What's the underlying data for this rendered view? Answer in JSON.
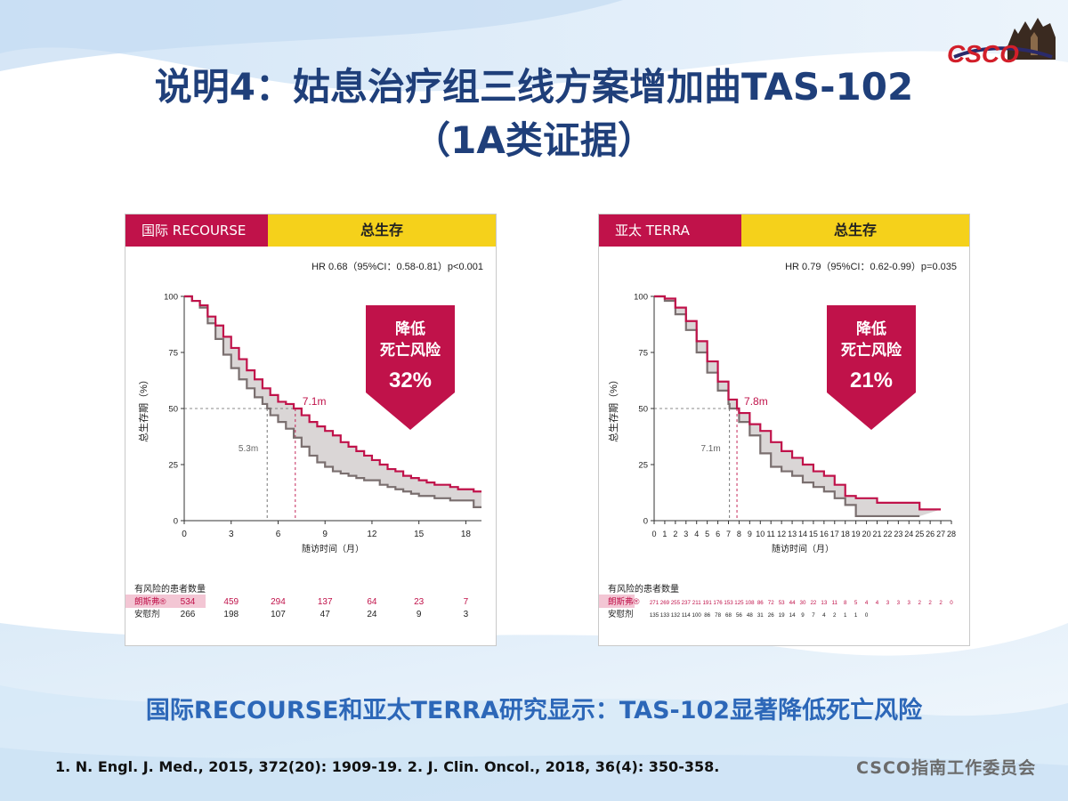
{
  "slide": {
    "title_line1": "说明4：姑息治疗组三线方案增加曲TAS-102",
    "title_line2": "（1A类证据）",
    "logo_text": "CSCO",
    "conclusion": "国际RECOURSE和亚太TERRA研究显示：TAS-102显著降低死亡风险",
    "references": "1. N. Engl. J. Med., 2015, 372(20): 1909-19.    2. J. Clin. Oncol., 2018, 36(4): 350-358.",
    "committee": "CSCO指南工作委员会",
    "colors": {
      "treatment": "#c0124a",
      "placebo": "#7a6f6f",
      "fill": "#d6d2d2",
      "tag": "#c0124a",
      "header": "#f5d11b",
      "title": "#1f3f7a"
    }
  },
  "chart_data": [
    {
      "type": "line",
      "tag": "国际 RECOURSE",
      "title": "总生存",
      "hr_text": "HR 0.68（95%CI：0.58-0.81）p<0.001",
      "ylabel": "总生存期（%）",
      "xlabel": "随访时间（月）",
      "xlim": [
        0,
        19
      ],
      "ylim": [
        0,
        100
      ],
      "x_ticks": [
        0,
        3,
        6,
        9,
        12,
        15,
        18
      ],
      "y_ticks": [
        0,
        25,
        50,
        75,
        100
      ],
      "callout": {
        "line1": "降低",
        "line2": "死亡风险",
        "value": "32%"
      },
      "median_treatment": {
        "x": 7.1,
        "label": "7.1m"
      },
      "median_placebo": {
        "x": 5.3,
        "label": "5.3m"
      },
      "series": [
        {
          "name": "朗斯弗®",
          "x": [
            0,
            0.5,
            1,
            1.5,
            2,
            2.5,
            3,
            3.5,
            4,
            4.5,
            5,
            5.5,
            6,
            6.5,
            7,
            7.1,
            7.5,
            8,
            8.5,
            9,
            9.5,
            10,
            10.5,
            11,
            11.5,
            12,
            12.5,
            13,
            13.5,
            14,
            14.5,
            15,
            15.5,
            16,
            16.5,
            17,
            17.5,
            18,
            18.5,
            19
          ],
          "y": [
            100,
            98,
            96,
            91,
            87,
            82,
            77,
            72,
            67,
            63,
            59,
            56,
            53,
            52,
            50,
            50,
            47,
            44,
            42,
            40,
            38,
            35,
            33,
            31,
            29,
            27,
            25,
            23,
            22,
            20,
            19,
            18,
            17,
            16,
            16,
            15,
            14,
            14,
            13,
            13
          ]
        },
        {
          "name": "安慰剂",
          "x": [
            0,
            0.5,
            1,
            1.5,
            2,
            2.5,
            3,
            3.5,
            4,
            4.5,
            5,
            5.3,
            5.5,
            6,
            6.5,
            7,
            7.5,
            8,
            8.5,
            9,
            9.5,
            10,
            10.5,
            11,
            11.5,
            12,
            12.5,
            13,
            13.5,
            14,
            14.5,
            15,
            15.5,
            16,
            16.5,
            17,
            17.5,
            18,
            18.5,
            19
          ],
          "y": [
            100,
            98,
            95,
            88,
            81,
            74,
            68,
            63,
            59,
            55,
            52,
            50,
            47,
            44,
            41,
            37,
            33,
            29,
            26,
            24,
            22,
            21,
            20,
            19,
            18,
            18,
            16,
            15,
            14,
            13,
            12,
            11,
            11,
            10,
            10,
            9,
            9,
            9,
            6,
            6
          ]
        }
      ],
      "risk_table": {
        "title": "有风险的患者数量",
        "rows": [
          {
            "label": "朗斯弗®",
            "values": [
              "534",
              "459",
              "294",
              "137",
              "64",
              "23",
              "7"
            ]
          },
          {
            "label": "安慰剂",
            "values": [
              "266",
              "198",
              "107",
              "47",
              "24",
              "9",
              "3"
            ]
          }
        ]
      }
    },
    {
      "type": "line",
      "tag": "亚太 TERRA",
      "title": "总生存",
      "hr_text": "HR 0.79（95%CI：0.62-0.99）p=0.035",
      "ylabel": "总生存期（%）",
      "xlabel": "随访时间（月）",
      "xlim": [
        0,
        28
      ],
      "ylim": [
        0,
        100
      ],
      "x_ticks": [
        0,
        1,
        2,
        3,
        4,
        5,
        6,
        7,
        8,
        9,
        10,
        11,
        12,
        13,
        14,
        15,
        16,
        17,
        18,
        19,
        20,
        21,
        22,
        23,
        24,
        25,
        26,
        27,
        28
      ],
      "y_ticks": [
        0,
        25,
        50,
        75,
        100
      ],
      "callout": {
        "line1": "降低",
        "line2": "死亡风险",
        "value": "21%"
      },
      "median_treatment": {
        "x": 7.8,
        "label": "7.8m"
      },
      "median_placebo": {
        "x": 7.1,
        "label": "7.1m"
      },
      "series": [
        {
          "name": "朗斯弗®",
          "x": [
            0,
            1,
            2,
            3,
            4,
            5,
            6,
            7,
            7.8,
            8,
            9,
            10,
            11,
            12,
            13,
            14,
            15,
            16,
            17,
            18,
            19,
            20,
            21,
            22,
            23,
            24,
            25,
            26,
            27
          ],
          "y": [
            100,
            99,
            95,
            89,
            80,
            71,
            62,
            54,
            50,
            48,
            43,
            40,
            35,
            31,
            28,
            25,
            22,
            20,
            16,
            11,
            10,
            10,
            8,
            8,
            8,
            8,
            5,
            5,
            5
          ]
        },
        {
          "name": "安慰剂",
          "x": [
            0,
            1,
            2,
            3,
            4,
            5,
            6,
            7,
            7.1,
            8,
            9,
            10,
            11,
            12,
            13,
            14,
            15,
            16,
            17,
            18,
            19,
            20,
            21,
            22,
            23,
            24,
            25
          ],
          "y": [
            100,
            98,
            92,
            85,
            75,
            66,
            58,
            52,
            50,
            44,
            38,
            30,
            24,
            22,
            20,
            17,
            15,
            13,
            10,
            7,
            2,
            2,
            2,
            2,
            2,
            2,
            2
          ]
        }
      ],
      "risk_table": {
        "title": "有风险的患者数量",
        "rows": [
          {
            "label": "朗斯弗®",
            "values": [
              "271",
              "269",
              "255",
              "237",
              "211",
              "191",
              "176",
              "153",
              "125",
              "108",
              "86",
              "72",
              "53",
              "44",
              "30",
              "22",
              "13",
              "11",
              "8",
              "5",
              "4",
              "4",
              "3",
              "3",
              "3",
              "2",
              "2",
              "2",
              "0"
            ]
          },
          {
            "label": "安慰剂",
            "values": [
              "135",
              "133",
              "132",
              "114",
              "100",
              "86",
              "78",
              "68",
              "56",
              "48",
              "31",
              "26",
              "19",
              "14",
              "9",
              "7",
              "4",
              "2",
              "1",
              "1",
              "0"
            ]
          }
        ]
      }
    }
  ]
}
